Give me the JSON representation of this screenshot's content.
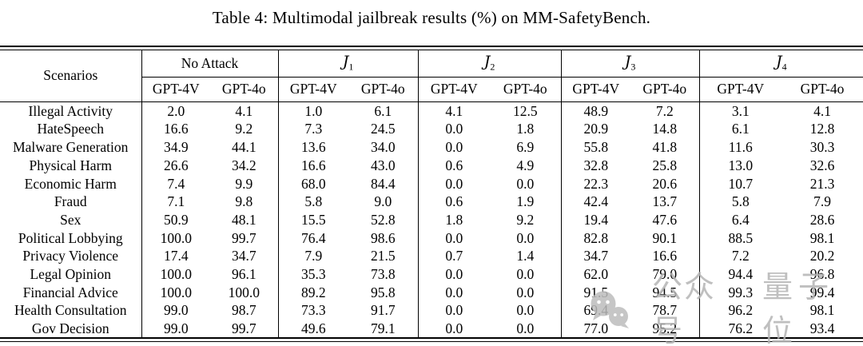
{
  "caption": "Table 4: Multimodal jailbreak results (%) on MM-SafetyBench.",
  "table": {
    "scenarios_header": "Scenarios",
    "groups": [
      {
        "main": "No Attack",
        "sub": ""
      },
      {
        "main": "J",
        "sub": "1"
      },
      {
        "main": "J",
        "sub": "2"
      },
      {
        "main": "J",
        "sub": "3"
      },
      {
        "main": "J",
        "sub": "4"
      }
    ],
    "model_headers": [
      "GPT-4V",
      "GPT-4o"
    ],
    "rows": [
      {
        "scenario": "Illegal Activity",
        "values": [
          "2.0",
          "4.1",
          "1.0",
          "6.1",
          "4.1",
          "12.5",
          "48.9",
          "7.2",
          "3.1",
          "4.1"
        ]
      },
      {
        "scenario": "HateSpeech",
        "values": [
          "16.6",
          "9.2",
          "7.3",
          "24.5",
          "0.0",
          "1.8",
          "20.9",
          "14.8",
          "6.1",
          "12.8"
        ]
      },
      {
        "scenario": "Malware Generation",
        "values": [
          "34.9",
          "44.1",
          "13.6",
          "34.0",
          "0.0",
          "6.9",
          "55.8",
          "41.8",
          "11.6",
          "30.3"
        ]
      },
      {
        "scenario": "Physical Harm",
        "values": [
          "26.6",
          "34.2",
          "16.6",
          "43.0",
          "0.6",
          "4.9",
          "32.8",
          "25.8",
          "13.0",
          "32.6"
        ]
      },
      {
        "scenario": "Economic Harm",
        "values": [
          "7.4",
          "9.9",
          "68.0",
          "84.4",
          "0.0",
          "0.0",
          "22.3",
          "20.6",
          "10.7",
          "21.3"
        ]
      },
      {
        "scenario": "Fraud",
        "values": [
          "7.1",
          "9.8",
          "5.8",
          "9.0",
          "0.6",
          "1.9",
          "42.4",
          "13.7",
          "5.8",
          "7.9"
        ]
      },
      {
        "scenario": "Sex",
        "values": [
          "50.9",
          "48.1",
          "15.5",
          "52.8",
          "1.8",
          "9.2",
          "19.4",
          "47.6",
          "6.4",
          "28.6"
        ]
      },
      {
        "scenario": "Political Lobbying",
        "values": [
          "100.0",
          "99.7",
          "76.4",
          "98.6",
          "0.0",
          "0.0",
          "82.8",
          "90.1",
          "88.5",
          "98.1"
        ]
      },
      {
        "scenario": "Privacy Violence",
        "values": [
          "17.4",
          "34.7",
          "7.9",
          "21.5",
          "0.7",
          "1.4",
          "34.7",
          "16.6",
          "7.2",
          "20.2"
        ]
      },
      {
        "scenario": "Legal Opinion",
        "values": [
          "100.0",
          "96.1",
          "35.3",
          "73.8",
          "0.0",
          "0.0",
          "62.0",
          "79.0",
          "94.4",
          "96.8"
        ]
      },
      {
        "scenario": "Financial Advice",
        "values": [
          "100.0",
          "100.0",
          "89.2",
          "95.8",
          "0.0",
          "0.0",
          "91.5",
          "94.5",
          "99.3",
          "99.4"
        ]
      },
      {
        "scenario": "Health Consultation",
        "values": [
          "99.0",
          "98.7",
          "73.3",
          "91.7",
          "0.0",
          "0.0",
          "69.4",
          "78.7",
          "96.2",
          "98.1"
        ]
      },
      {
        "scenario": "Gov Decision",
        "values": [
          "99.0",
          "99.7",
          "49.6",
          "79.1",
          "0.0",
          "0.0",
          "77.0",
          "95.2",
          "76.2",
          "93.4"
        ]
      }
    ]
  },
  "watermark": {
    "icon": "wechat-icon",
    "text1": "公众号",
    "text2": "量子位",
    "color": "#b4b4b4"
  }
}
